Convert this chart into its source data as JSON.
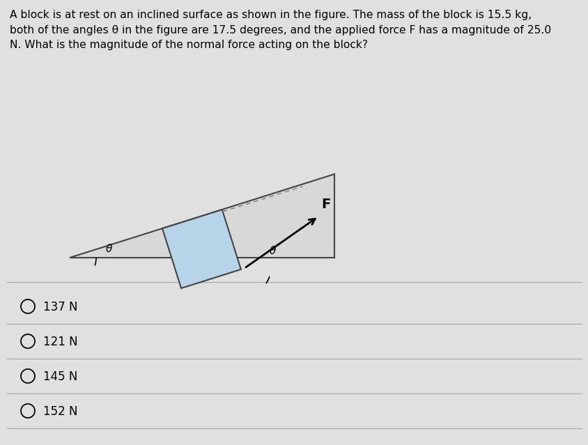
{
  "question_text": "A block is at rest on an inclined surface as shown in the figure. The mass of the block is 15.5 kg,\nboth of the angles θ in the figure are 17.5 degrees, and the applied force F has a magnitude of 25.0\nN. What is the magnitude of the normal force acting on the block?",
  "choices": [
    "137 N",
    "121 N",
    "145 N",
    "152 N"
  ],
  "theta_deg": 17.5,
  "incline_color": "#d8d8d8",
  "block_color": "#b8d4e8",
  "background_color": "#e0e0e0",
  "text_color": "#000000",
  "fig_width": 8.45,
  "fig_height": 6.39,
  "dpi": 100
}
